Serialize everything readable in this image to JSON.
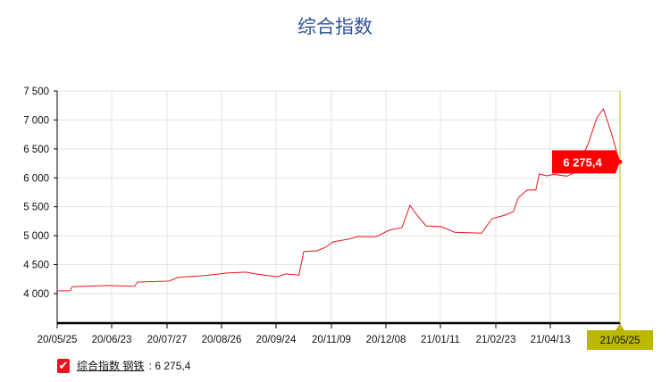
{
  "chart_data": {
    "type": "line",
    "title": "综合指数",
    "xlabel": "",
    "ylabel": "",
    "ylim": [
      3490,
      7500
    ],
    "yticks": [
      4000,
      4500,
      5000,
      5500,
      6000,
      6500,
      7000,
      7500
    ],
    "ytick_labels": [
      "4 000",
      "4 500",
      "5 000",
      "5 500",
      "6 000",
      "6 500",
      "7 000",
      "7 500"
    ],
    "xticks": [
      "2020-05-25",
      "2020-06-23",
      "2020-07-27",
      "2020-08-26",
      "2020-09-24",
      "2020-11-09",
      "2020-12-08",
      "2021-01-11",
      "2021-02-23",
      "2021-04-13",
      "2021-05-25"
    ],
    "xtick_labels": [
      "20/05/25",
      "20/06/23",
      "20/07/27",
      "20/08/26",
      "20/09/24",
      "20/11/09",
      "20/12/08",
      "21/01/11",
      "21/02/23",
      "21/04/13",
      "21/05/25"
    ],
    "grid": true,
    "series": [
      {
        "name": "综合指数 钢铁",
        "color": "#e8141b",
        "points": [
          [
            "2020-05-25",
            4045
          ],
          [
            "2020-06-01",
            4050
          ],
          [
            "2020-06-02",
            4120
          ],
          [
            "2020-06-21",
            4140
          ],
          [
            "2020-07-07",
            4125
          ],
          [
            "2020-07-09",
            4200
          ],
          [
            "2020-07-28",
            4215
          ],
          [
            "2020-08-02",
            4280
          ],
          [
            "2020-08-17",
            4310
          ],
          [
            "2020-08-29",
            4355
          ],
          [
            "2020-09-08",
            4370
          ],
          [
            "2020-09-13",
            4340
          ],
          [
            "2020-09-25",
            4290
          ],
          [
            "2020-10-02",
            4340
          ],
          [
            "2020-10-13",
            4320
          ],
          [
            "2020-10-17",
            4725
          ],
          [
            "2020-10-28",
            4740
          ],
          [
            "2020-11-04",
            4800
          ],
          [
            "2020-11-10",
            4895
          ],
          [
            "2020-11-18",
            4940
          ],
          [
            "2020-11-23",
            4985
          ],
          [
            "2020-12-03",
            4985
          ],
          [
            "2020-12-10",
            5095
          ],
          [
            "2020-12-18",
            5140
          ],
          [
            "2020-12-23",
            5525
          ],
          [
            "2020-12-27",
            5370
          ],
          [
            "2021-01-02",
            5170
          ],
          [
            "2021-01-12",
            5155
          ],
          [
            "2021-01-22",
            5060
          ],
          [
            "2021-02-12",
            5045
          ],
          [
            "2021-02-20",
            5295
          ],
          [
            "2021-03-03",
            5355
          ],
          [
            "2021-03-11",
            5420
          ],
          [
            "2021-03-15",
            5650
          ],
          [
            "2021-03-23",
            5790
          ],
          [
            "2021-03-31",
            5790
          ],
          [
            "2021-04-03",
            6065
          ],
          [
            "2021-04-10",
            6035
          ],
          [
            "2021-04-15",
            6060
          ],
          [
            "2021-04-23",
            6030
          ],
          [
            "2021-04-28",
            6095
          ],
          [
            "2021-05-06",
            6600
          ],
          [
            "2021-05-11",
            7035
          ],
          [
            "2021-05-15",
            7190
          ],
          [
            "2021-05-20",
            6760
          ],
          [
            "2021-05-23",
            6450
          ],
          [
            "2021-05-25",
            6275.4
          ]
        ]
      }
    ],
    "tooltip_value": "6 275,4",
    "crosshair_label": "21/05/25",
    "crosshair_color": "#bcb800",
    "legend": {
      "checked": true,
      "series_label": "综合指数 钢铁",
      "value": "6 275,4",
      "placement": "bottom-left"
    }
  }
}
